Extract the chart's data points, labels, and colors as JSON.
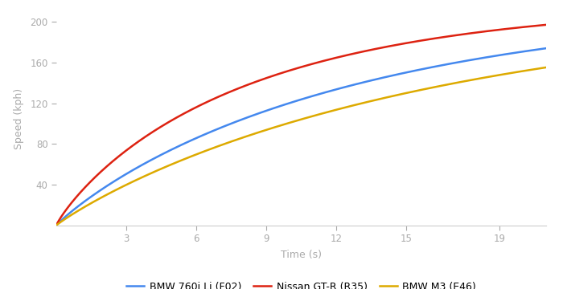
{
  "xlabel": "Time (s)",
  "ylabel": "Speed (kph)",
  "xlim": [
    0,
    21
  ],
  "ylim": [
    0,
    210
  ],
  "xticks": [
    3,
    6,
    9,
    12,
    15,
    19
  ],
  "yticks": [
    40,
    80,
    120,
    160,
    200
  ],
  "curves": [
    {
      "label": "BMW 760i Li (F02)",
      "color": "#4488ee",
      "vmax": 220,
      "alpha": 0.095,
      "beta": 0.92
    },
    {
      "label": "Nissan GT-R (R35)",
      "color": "#dd2211",
      "vmax": 220,
      "alpha": 0.155,
      "beta": 0.88
    },
    {
      "label": "BMW M3 (E46)",
      "color": "#ddaa00",
      "vmax": 220,
      "alpha": 0.072,
      "beta": 0.93
    }
  ],
  "axis_label_color": "#aaaaaa",
  "tick_color": "#aaaaaa",
  "spine_color": "#cccccc",
  "background_color": "#ffffff",
  "legend_fontsize": 9,
  "linewidth": 1.8
}
